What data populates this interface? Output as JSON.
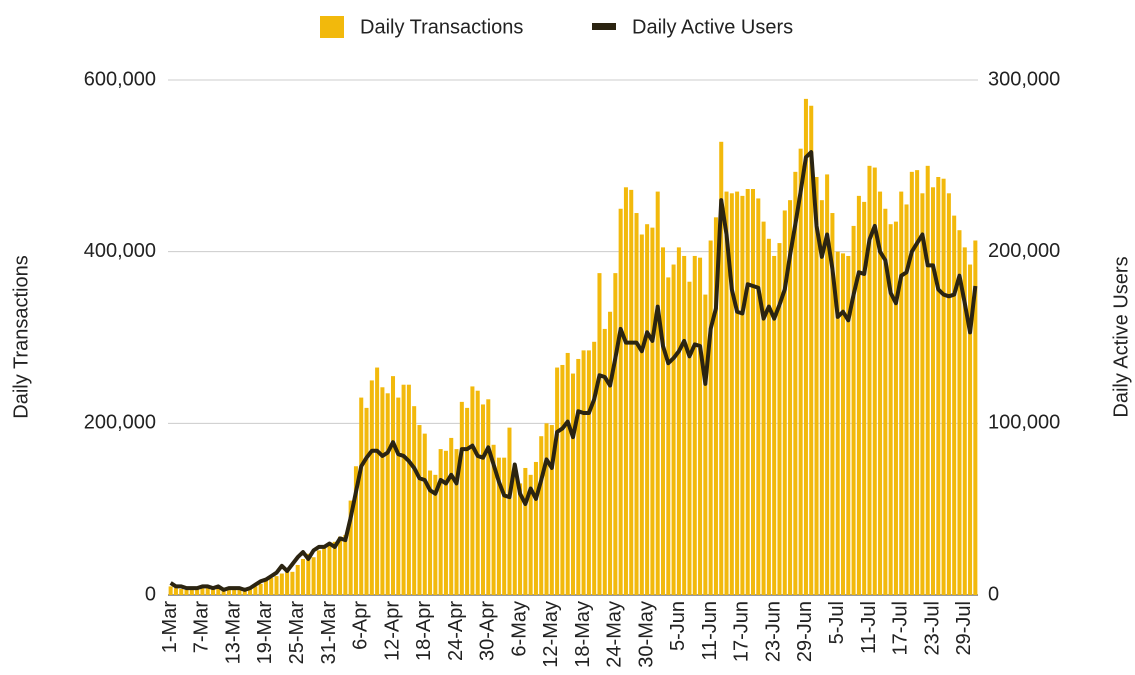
{
  "chart_data": {
    "type": "combo",
    "categories": [
      "1-Mar",
      null,
      null,
      null,
      null,
      null,
      "7-Mar",
      null,
      null,
      null,
      null,
      null,
      "13-Mar",
      null,
      null,
      null,
      null,
      null,
      "19-Mar",
      null,
      null,
      null,
      null,
      null,
      "25-Mar",
      null,
      null,
      null,
      null,
      null,
      "31-Mar",
      null,
      null,
      null,
      null,
      null,
      "6-Apr",
      null,
      null,
      null,
      null,
      null,
      "12-Apr",
      null,
      null,
      null,
      null,
      null,
      "18-Apr",
      null,
      null,
      null,
      null,
      null,
      "24-Apr",
      null,
      null,
      null,
      null,
      null,
      "30-Apr",
      null,
      null,
      null,
      null,
      null,
      "6-May",
      null,
      null,
      null,
      null,
      null,
      "12-May",
      null,
      null,
      null,
      null,
      null,
      "18-May",
      null,
      null,
      null,
      null,
      null,
      "24-May",
      null,
      null,
      null,
      null,
      null,
      "30-May",
      null,
      null,
      null,
      null,
      null,
      "5-Jun",
      null,
      null,
      null,
      null,
      null,
      "11-Jun",
      null,
      null,
      null,
      null,
      null,
      "17-Jun",
      null,
      null,
      null,
      null,
      null,
      "23-Jun",
      null,
      null,
      null,
      null,
      null,
      "29-Jun",
      null,
      null,
      null,
      null,
      null,
      "5-Jul",
      null,
      null,
      null,
      null,
      null,
      "11-Jul",
      null,
      null,
      null,
      null,
      null,
      "17-Jul",
      null,
      null,
      null,
      null,
      null,
      "23-Jul",
      null,
      null,
      null,
      null,
      null,
      "29-Jul",
      null,
      null
    ],
    "series": [
      {
        "name": "Daily Transactions",
        "type": "bar",
        "color": "#f2b90c",
        "values": [
          10000,
          8000,
          7000,
          6000,
          6000,
          7000,
          8000,
          8000,
          7000,
          8000,
          6000,
          6000,
          7000,
          7000,
          6000,
          8000,
          10000,
          13000,
          17000,
          20000,
          22000,
          25000,
          30000,
          27000,
          35000,
          42000,
          48000,
          44000,
          52000,
          58000,
          60000,
          62000,
          68000,
          70000,
          110000,
          150000,
          230000,
          218000,
          250000,
          265000,
          242000,
          235000,
          255000,
          230000,
          245000,
          245000,
          220000,
          198000,
          188000,
          145000,
          140000,
          170000,
          168000,
          183000,
          170000,
          225000,
          218000,
          243000,
          238000,
          222000,
          228000,
          175000,
          160000,
          160000,
          195000,
          145000,
          130000,
          148000,
          140000,
          155000,
          185000,
          200000,
          198000,
          265000,
          268000,
          282000,
          258000,
          275000,
          285000,
          285000,
          295000,
          375000,
          310000,
          330000,
          375000,
          450000,
          475000,
          472000,
          445000,
          420000,
          432000,
          428000,
          470000,
          405000,
          370000,
          385000,
          405000,
          395000,
          365000,
          395000,
          393000,
          350000,
          413000,
          440000,
          528000,
          470000,
          468000,
          470000,
          465000,
          473000,
          473000,
          462000,
          435000,
          415000,
          395000,
          410000,
          448000,
          460000,
          493000,
          520000,
          578000,
          570000,
          487000,
          460000,
          490000,
          445000,
          400000,
          398000,
          395000,
          430000,
          465000,
          458000,
          500000,
          498000,
          470000,
          450000,
          432000,
          435000,
          470000,
          455000,
          493000,
          495000,
          468000,
          500000,
          475000,
          487000,
          485000,
          468000,
          442000,
          425000,
          405000,
          385000,
          413000
        ]
      },
      {
        "name": "Daily Active Users",
        "type": "line",
        "axis": "y2",
        "color": "#2b2411",
        "values": [
          7000,
          5000,
          5000,
          4000,
          4000,
          4000,
          5000,
          5000,
          4000,
          5000,
          3000,
          4000,
          4000,
          4000,
          3000,
          4000,
          6000,
          8000,
          9000,
          11000,
          13000,
          17000,
          14000,
          18000,
          22000,
          25000,
          21000,
          26000,
          28000,
          28000,
          30000,
          28000,
          33000,
          32000,
          45000,
          60000,
          75000,
          80000,
          84000,
          84000,
          81000,
          83000,
          89000,
          82000,
          81000,
          78000,
          74000,
          68000,
          67000,
          61000,
          59000,
          67000,
          65000,
          70000,
          65000,
          85000,
          85000,
          87000,
          81000,
          80000,
          86000,
          76000,
          66000,
          58000,
          57000,
          76000,
          59000,
          53000,
          62000,
          56000,
          67000,
          79000,
          74000,
          95000,
          97000,
          101000,
          92000,
          107000,
          106000,
          106000,
          114000,
          128000,
          127000,
          122000,
          138000,
          155000,
          147000,
          147000,
          147000,
          142000,
          153000,
          148000,
          168000,
          145000,
          135000,
          138000,
          142000,
          148000,
          139000,
          146000,
          145000,
          123000,
          155000,
          167000,
          230000,
          210000,
          178000,
          165000,
          164000,
          181000,
          180000,
          179000,
          161000,
          168000,
          161000,
          169000,
          178000,
          198000,
          216000,
          235000,
          255000,
          258000,
          215000,
          197000,
          210000,
          190000,
          162000,
          165000,
          160000,
          175000,
          188000,
          187000,
          207000,
          215000,
          200000,
          195000,
          176000,
          170000,
          186000,
          188000,
          200000,
          205000,
          210000,
          192000,
          192000,
          178000,
          175000,
          174000,
          175000,
          186000,
          170000,
          153000,
          180000
        ]
      }
    ],
    "ylabel": "Daily Transactions",
    "y2label": "Daily Active Users",
    "ylim": [
      0,
      600000
    ],
    "yticks": [
      0,
      {
        "value": 200000,
        "label": "200,000"
      },
      {
        "value": 400000,
        "label": "400,000"
      },
      {
        "value": 600000,
        "label": "600,000"
      }
    ],
    "y2lim": [
      0,
      300000
    ],
    "y2ticks": [
      0,
      {
        "value": 100000,
        "label": "100,000"
      },
      {
        "value": 200000,
        "label": "200,000"
      },
      {
        "value": 300000,
        "label": "300,000"
      }
    ],
    "grid": true,
    "legend": "top"
  }
}
